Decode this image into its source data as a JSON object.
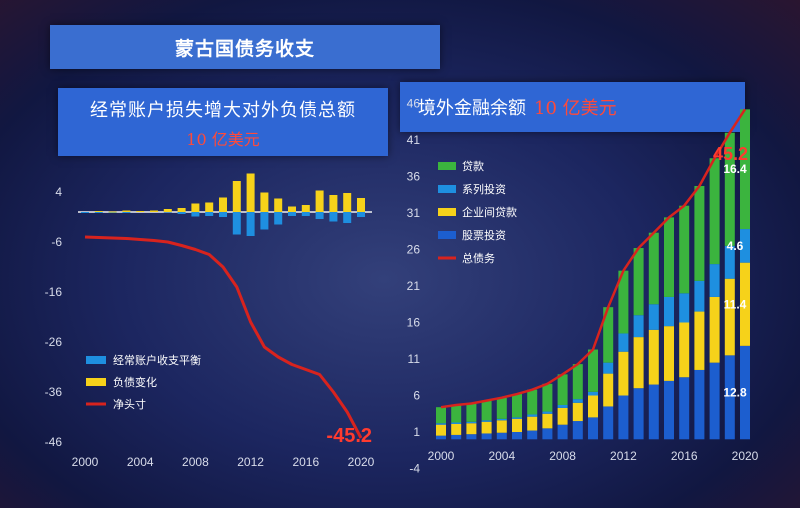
{
  "title": "蒙古国债务收支",
  "left_panel": {
    "heading": "经常账户损失增大对外负债总额",
    "unit": "10 亿美元"
  },
  "right_panel": {
    "heading": "境外金融余额",
    "unit": "10 亿美元"
  },
  "colors": {
    "blue": "#1e8fe0",
    "yellow": "#f6d21a",
    "red": "#d8231e",
    "green": "#3bb43e",
    "darkblue": "#1c5ecf"
  },
  "chart_data": [
    {
      "type": "bar",
      "years": [
        2000,
        2001,
        2002,
        2003,
        2004,
        2005,
        2006,
        2007,
        2008,
        2009,
        2010,
        2011,
        2012,
        2013,
        2014,
        2015,
        2016,
        2017,
        2018,
        2019,
        2020
      ],
      "x_ticks": [
        "2000",
        "2004",
        "2008",
        "2012",
        "2016",
        "2020"
      ],
      "y_ticks": [
        "4",
        "-6",
        "-16",
        "-26",
        "-36",
        "-46"
      ],
      "ylim": [
        -46,
        6
      ],
      "series": [
        {
          "name": "经常账户收支平衡",
          "type": "bar",
          "values": [
            -0.1,
            -0.2,
            -0.2,
            -0.1,
            0,
            0,
            0.1,
            -0.4,
            -0.9,
            -0.8,
            -1,
            -4.5,
            -4.8,
            -3.5,
            -2.5,
            -0.8,
            -0.8,
            -1.4,
            -1.9,
            -2.2,
            -1
          ]
        },
        {
          "name": "负债变化",
          "type": "bar",
          "values": [
            0,
            0.2,
            0.1,
            0.3,
            0.2,
            0.3,
            0.6,
            0.8,
            1.7,
            1.9,
            2.9,
            6.2,
            7.7,
            3.9,
            2.7,
            1.1,
            1.4,
            4.3,
            3.4,
            3.8,
            2.8
          ]
        },
        {
          "name": "净头寸",
          "type": "line",
          "values": [
            -5,
            -5.1,
            -5.2,
            -5.3,
            -5.5,
            -5.7,
            -6,
            -6.7,
            -7.5,
            -8.5,
            -11,
            -15,
            -22,
            -27,
            -29,
            -30.5,
            -31.5,
            -32.5,
            -36,
            -40,
            -45.2
          ]
        }
      ],
      "annotation": "-45.2"
    },
    {
      "type": "bar",
      "stacked": true,
      "years": [
        2000,
        2001,
        2002,
        2003,
        2004,
        2005,
        2006,
        2007,
        2008,
        2009,
        2010,
        2011,
        2012,
        2013,
        2014,
        2015,
        2016,
        2017,
        2018,
        2019,
        2020
      ],
      "x_ticks": [
        "2000",
        "2004",
        "2008",
        "2012",
        "2016",
        "2020"
      ],
      "y_ticks": [
        "46",
        "41",
        "36",
        "31",
        "26",
        "21",
        "16",
        "11",
        "6",
        "1",
        "-4"
      ],
      "ylim": [
        -4,
        46
      ],
      "series": [
        {
          "name": "股票投资",
          "values": [
            0.5,
            0.6,
            0.7,
            0.8,
            0.9,
            1,
            1.2,
            1.5,
            2,
            2.5,
            3,
            4.5,
            6,
            7,
            7.5,
            8,
            8.5,
            9.5,
            10.5,
            11.5,
            12.8
          ]
        },
        {
          "name": "企业间贷款",
          "values": [
            1.5,
            1.5,
            1.5,
            1.6,
            1.7,
            1.8,
            1.9,
            2,
            2.3,
            2.5,
            3,
            4.5,
            6,
            7,
            7.5,
            7.5,
            7.5,
            8,
            9,
            10.5,
            11.4
          ]
        },
        {
          "name": "系列投资",
          "values": [
            0.2,
            0.2,
            0.2,
            0.2,
            0.2,
            0.2,
            0.3,
            0.3,
            0.4,
            0.5,
            0.5,
            1.5,
            2.5,
            3,
            3.5,
            4,
            4,
            4.2,
            4.5,
            4.5,
            4.6
          ]
        },
        {
          "name": "贷款",
          "values": [
            2.2,
            2.4,
            2.5,
            2.7,
            2.9,
            3.2,
            3.4,
            3.8,
            4.2,
            4.8,
            5.8,
            7.6,
            8.6,
            9.2,
            9.8,
            10.9,
            12,
            13,
            14.5,
            15.5,
            16.4
          ]
        }
      ],
      "total": {
        "name": "总债务",
        "values": [
          4.4,
          4.7,
          4.9,
          5.3,
          5.7,
          6.2,
          6.8,
          7.6,
          8.9,
          10.3,
          12.3,
          18.1,
          23.1,
          26.2,
          28.3,
          30.4,
          32,
          34.7,
          38.5,
          42,
          45.2
        ]
      },
      "data_labels": [
        "16.4",
        "4.6",
        "11.4",
        "12.8"
      ],
      "annotation": "45.2"
    }
  ]
}
